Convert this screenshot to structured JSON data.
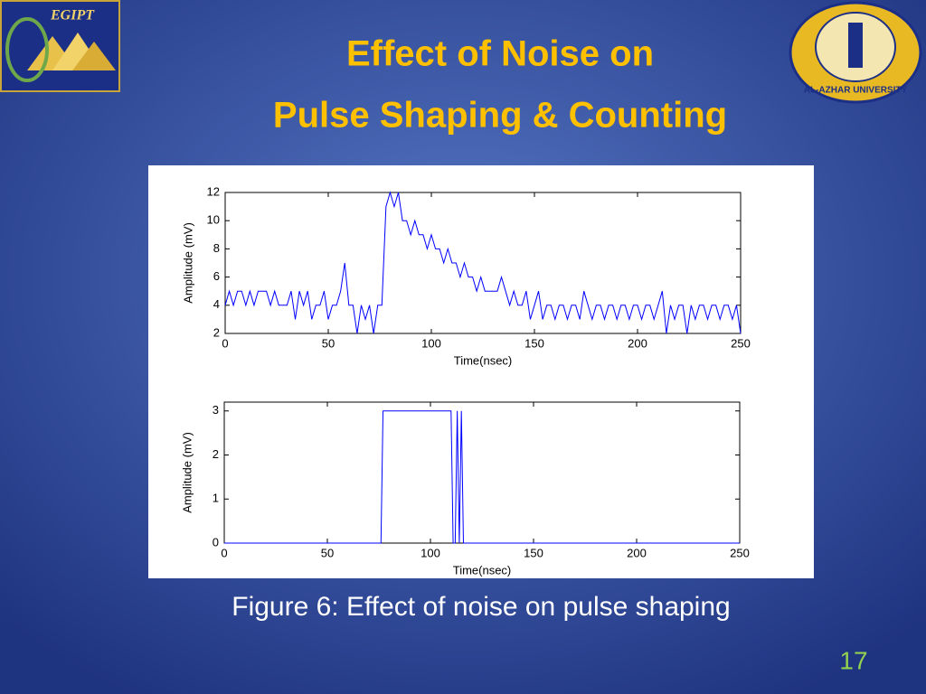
{
  "title_line1": "Effect of Noise on",
  "title_line2": "Pulse Shaping & Counting",
  "caption": "Figure 6: Effect of noise on pulse shaping",
  "page_number": "17",
  "logo_left": "EGIPT",
  "logo_right": "AL-AZHAR UNIVERSITY",
  "chart_data": [
    {
      "type": "line",
      "color": "#0000ff",
      "xlabel": "Time(nsec)",
      "ylabel": "Amplitude (mV)",
      "xlim": [
        0,
        250
      ],
      "ylim": [
        2,
        12
      ],
      "xticks": [
        0,
        50,
        100,
        150,
        200,
        250
      ],
      "yticks": [
        2,
        4,
        6,
        8,
        10,
        12
      ],
      "x": [
        0,
        2,
        4,
        6,
        8,
        10,
        12,
        14,
        16,
        18,
        20,
        22,
        24,
        26,
        28,
        30,
        32,
        34,
        36,
        38,
        40,
        42,
        44,
        46,
        48,
        50,
        52,
        54,
        56,
        58,
        60,
        62,
        64,
        66,
        68,
        70,
        72,
        74,
        76,
        78,
        80,
        82,
        84,
        86,
        88,
        90,
        92,
        94,
        96,
        98,
        100,
        102,
        104,
        106,
        108,
        110,
        112,
        114,
        116,
        118,
        120,
        122,
        124,
        126,
        128,
        130,
        132,
        134,
        136,
        138,
        140,
        142,
        144,
        146,
        148,
        150,
        152,
        154,
        156,
        158,
        160,
        162,
        164,
        166,
        168,
        170,
        172,
        174,
        176,
        178,
        180,
        182,
        184,
        186,
        188,
        190,
        192,
        194,
        196,
        198,
        200,
        202,
        204,
        206,
        208,
        210,
        212,
        214,
        216,
        218,
        220,
        222,
        224,
        226,
        228,
        230,
        232,
        234,
        236,
        238,
        240,
        242,
        244,
        246,
        248,
        250
      ],
      "values": [
        4,
        5,
        4,
        5,
        5,
        4,
        5,
        4,
        5,
        5,
        5,
        4,
        5,
        4,
        4,
        4,
        5,
        3,
        5,
        4,
        5,
        3,
        4,
        4,
        5,
        3,
        4,
        4,
        5,
        7,
        4,
        4,
        2,
        4,
        3,
        4,
        2,
        4,
        4,
        11,
        12,
        11,
        12,
        10,
        10,
        9,
        10,
        9,
        9,
        8,
        9,
        8,
        8,
        7,
        8,
        7,
        7,
        6,
        7,
        6,
        6,
        5,
        6,
        5,
        5,
        5,
        5,
        6,
        5,
        4,
        5,
        4,
        4,
        5,
        3,
        4,
        5,
        3,
        4,
        4,
        3,
        4,
        4,
        3,
        4,
        4,
        3,
        5,
        4,
        3,
        4,
        4,
        3,
        4,
        4,
        3,
        4,
        4,
        3,
        4,
        4,
        3,
        4,
        4,
        3,
        4,
        5,
        2,
        4,
        3,
        4,
        4,
        2,
        4,
        3,
        4,
        4,
        3,
        4,
        4,
        3,
        4,
        4,
        3,
        4,
        2
      ]
    },
    {
      "type": "line",
      "color": "#0000ff",
      "xlabel": "Time(nsec)",
      "ylabel": "Amplitude (mV)",
      "xlim": [
        0,
        250
      ],
      "ylim": [
        0,
        3.2
      ],
      "xticks": [
        0,
        50,
        100,
        150,
        200,
        250
      ],
      "yticks": [
        0,
        1,
        2,
        3
      ],
      "x": [
        0,
        76,
        77,
        110,
        111,
        112,
        113,
        114,
        115,
        116,
        250
      ],
      "values": [
        0,
        0,
        3,
        3,
        0,
        0,
        3,
        0,
        3,
        0,
        0
      ]
    }
  ]
}
